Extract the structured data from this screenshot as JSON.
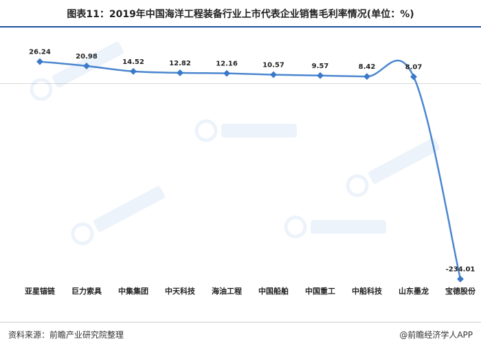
{
  "title": "图表11：2019年中国海洋工程装备行业上市代表企业销售毛利率情况(单位：%)",
  "source": "资料来源：前瞻产业研究院整理",
  "brand": "@前瞻经济学人APP",
  "colors": {
    "line": "#4a86cf",
    "marker": "#3a78c9",
    "rule": "#1f4e9a"
  },
  "chart_data": {
    "type": "line",
    "categories": [
      "亚星锚链",
      "巨力索具",
      "中集集团",
      "中天科技",
      "海油工程",
      "中国船舶",
      "中国重工",
      "中船科技",
      "山东墨龙",
      "宝德股份"
    ],
    "values": [
      26.24,
      20.98,
      14.52,
      12.82,
      12.16,
      10.57,
      9.57,
      8.42,
      8.07,
      -234.01
    ],
    "data_labels": [
      "26.24",
      "20.98",
      "14.52",
      "12.82",
      "12.16",
      "10.57",
      "9.57",
      "8.42",
      "8.07",
      "-234.01"
    ],
    "title": "",
    "xlabel": "",
    "ylabel": "",
    "ylim": [
      -240,
      30
    ],
    "grid": false,
    "legend": "none"
  }
}
